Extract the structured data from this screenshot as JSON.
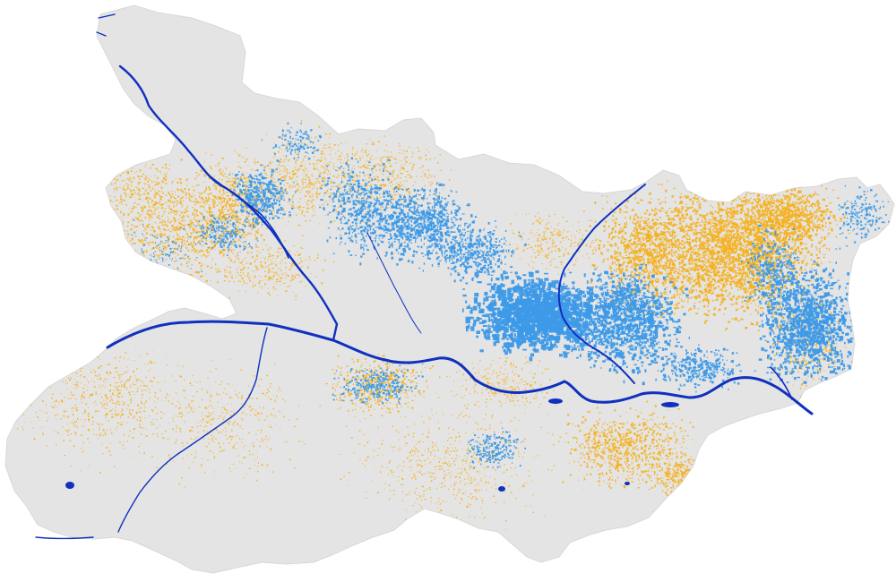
{
  "map": {
    "region": "Bihar",
    "colors": {
      "background": "#ffffff",
      "land": "#e4e4e4",
      "land_edge": "#d8d8d8",
      "permanent_water": "#1030c0",
      "flooded_area": "#3d9ae8",
      "flood_risk": "#f5b01e"
    },
    "layers": [
      {
        "id": "land",
        "shown": true
      },
      {
        "id": "flood_risk_patches",
        "shown": true
      },
      {
        "id": "flooded_patches",
        "shown": true
      },
      {
        "id": "rivers",
        "shown": true
      }
    ]
  }
}
